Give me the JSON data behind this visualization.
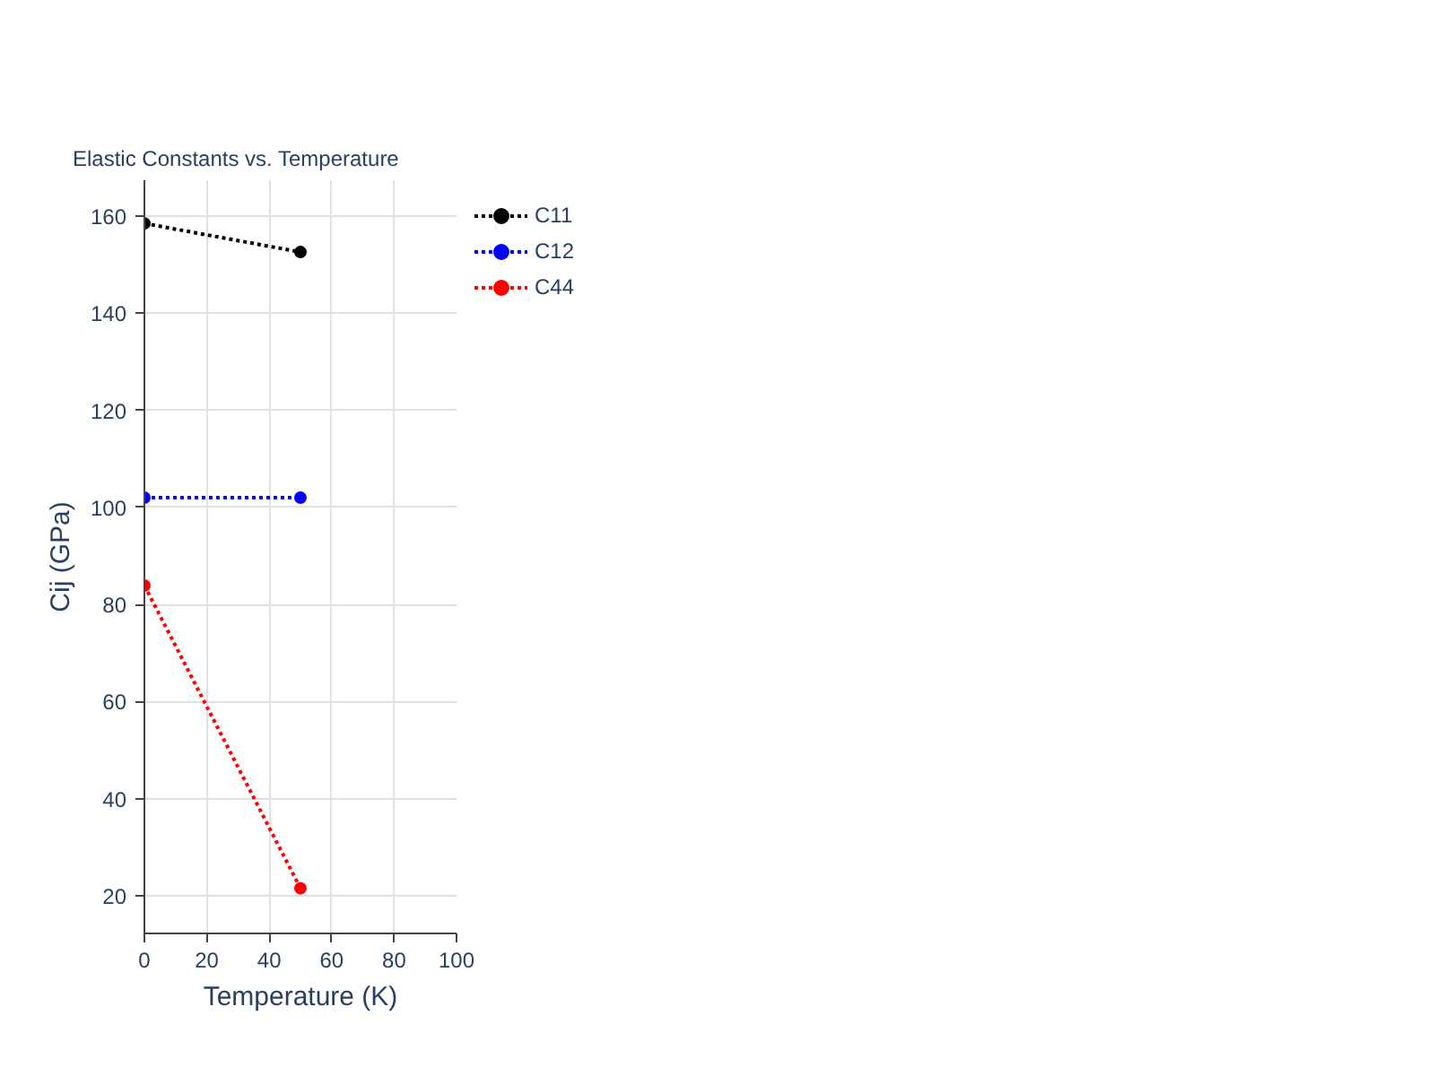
{
  "chart_data": {
    "type": "line",
    "title": "Elastic Constants vs. Temperature",
    "xlabel": "Temperature (K)",
    "ylabel": "Cij (GPa)",
    "x": [
      0,
      50
    ],
    "series": [
      {
        "name": "C11",
        "color": "#000000",
        "values": [
          158.5,
          152.6
        ]
      },
      {
        "name": "C12",
        "color": "#0000ff",
        "values": [
          102.0,
          102.0
        ]
      },
      {
        "name": "C44",
        "color": "#ff0000",
        "values": [
          83.9,
          21.5
        ]
      }
    ],
    "xlim": [
      0,
      100
    ],
    "xticks": [
      0,
      20,
      40,
      60,
      80,
      100
    ],
    "ylim": [
      12.2,
      167.4
    ],
    "yticks": [
      20,
      40,
      60,
      80,
      100,
      120,
      140,
      160
    ],
    "grid": true,
    "legend": "top right",
    "marker": "circle",
    "line_style": "dotted"
  }
}
